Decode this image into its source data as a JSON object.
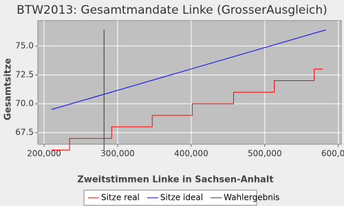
{
  "chart_data": {
    "type": "line",
    "title": "BTW2013: Gesamtmandate Linke (GrosserAusgleich)",
    "x_label": "Zweitstimmen Linke in Sachsen-Anhalt",
    "y_label": "Gesamtsitze",
    "xlim": [
      191500,
      604000
    ],
    "ylim": [
      66.5,
      77.2
    ],
    "xticks": [
      {
        "value": 200000,
        "label": "200,000"
      },
      {
        "value": 300000,
        "label": "300,000"
      },
      {
        "value": 400000,
        "label": "400,000"
      },
      {
        "value": 500000,
        "label": "500,000"
      },
      {
        "value": 600000,
        "label": "600,000"
      }
    ],
    "yticks": [
      {
        "value": 67.5,
        "label": "67.5"
      },
      {
        "value": 70,
        "label": "70.0"
      },
      {
        "value": 72.5,
        "label": "72.5"
      },
      {
        "value": 75,
        "label": "75.0"
      }
    ],
    "grid": true,
    "series": [
      {
        "name": "Sitze real",
        "color": "#ff0000",
        "x": [
          210000,
          234700,
          234700,
          291800,
          291800,
          347000,
          347000,
          401400,
          401400,
          457600,
          457600,
          512900,
          512900,
          567200,
          567200,
          579000
        ],
        "values": [
          66,
          66,
          67,
          67,
          68,
          68,
          69,
          69,
          70,
          70,
          71,
          71,
          72,
          72,
          73,
          73
        ]
      },
      {
        "name": "Sitze ideal",
        "color": "#0000ff",
        "x": [
          210000,
          583000
        ],
        "values": [
          69.5,
          76.4
        ]
      },
      {
        "name": "Wahlergebnis",
        "color": "#333333",
        "x": [
          281500,
          281500
        ],
        "values": [
          66,
          76.4
        ]
      }
    ]
  }
}
